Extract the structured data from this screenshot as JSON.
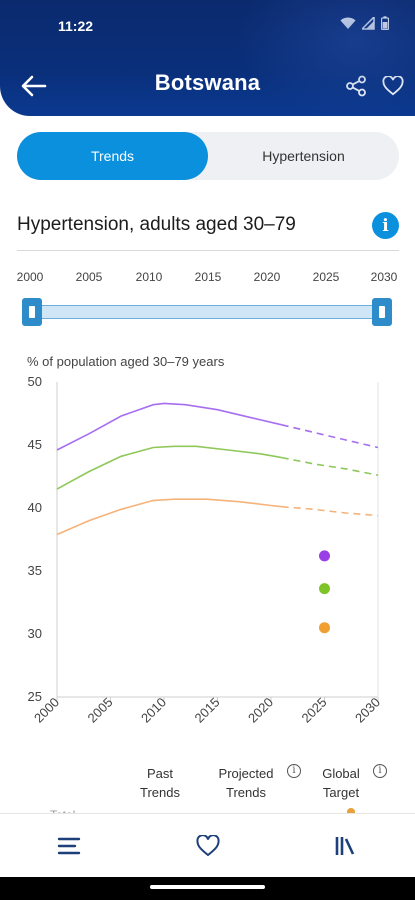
{
  "status_bar": {
    "time": "11:22"
  },
  "header": {
    "title": "Botswana"
  },
  "tabs": [
    {
      "label": "Trends",
      "active": true
    },
    {
      "label": "Hypertension",
      "active": false
    }
  ],
  "section": {
    "title": "Hypertension, adults aged 30–79",
    "info_icon": "i"
  },
  "slider": {
    "years": [
      "2000",
      "2005",
      "2010",
      "2015",
      "2020",
      "2025",
      "2030"
    ],
    "range_start": 2000,
    "range_end": 2030
  },
  "chart_data": {
    "type": "line",
    "ylabel": "% of population aged 30–79 years",
    "ylim": [
      25,
      50
    ],
    "yticks": [
      "25",
      "30",
      "35",
      "40",
      "45",
      "50"
    ],
    "xlim": [
      2000,
      2030
    ],
    "xticks": [
      "2000",
      "2005",
      "2010",
      "2015",
      "2020",
      "2025",
      "2030"
    ],
    "series": [
      {
        "color": "#a76ef0",
        "past": [
          [
            2000,
            44.6
          ],
          [
            2003,
            45.9
          ],
          [
            2006,
            47.3
          ],
          [
            2009,
            48.2
          ],
          [
            2010,
            48.3
          ],
          [
            2012,
            48.2
          ],
          [
            2015,
            47.8
          ],
          [
            2018,
            47.2
          ],
          [
            2021,
            46.6
          ]
        ],
        "projected": [
          [
            2021,
            46.6
          ],
          [
            2024,
            46.0
          ],
          [
            2027,
            45.4
          ],
          [
            2030,
            44.8
          ]
        ],
        "target": {
          "x": 2025,
          "y": 36.2,
          "color": "#9a3ee6"
        }
      },
      {
        "color": "#8ec85a",
        "past": [
          [
            2000,
            41.5
          ],
          [
            2003,
            42.9
          ],
          [
            2006,
            44.1
          ],
          [
            2009,
            44.8
          ],
          [
            2011,
            44.9
          ],
          [
            2013,
            44.9
          ],
          [
            2016,
            44.6
          ],
          [
            2019,
            44.3
          ],
          [
            2021,
            44.0
          ]
        ],
        "projected": [
          [
            2021,
            44.0
          ],
          [
            2024,
            43.5
          ],
          [
            2027,
            43.1
          ],
          [
            2030,
            42.6
          ]
        ],
        "target": {
          "x": 2025,
          "y": 33.6,
          "color": "#7cc427"
        }
      },
      {
        "color": "#f5b37a",
        "past": [
          [
            2000,
            37.9
          ],
          [
            2003,
            39.0
          ],
          [
            2006,
            39.9
          ],
          [
            2009,
            40.6
          ],
          [
            2011,
            40.7
          ],
          [
            2014,
            40.7
          ],
          [
            2017,
            40.5
          ],
          [
            2020,
            40.2
          ],
          [
            2021,
            40.1
          ]
        ],
        "projected": [
          [
            2021,
            40.1
          ],
          [
            2024,
            39.9
          ],
          [
            2027,
            39.6
          ],
          [
            2030,
            39.4
          ]
        ],
        "target": {
          "x": 2025,
          "y": 30.5,
          "color": "#f0a030"
        }
      }
    ]
  },
  "legend": {
    "past": "Past\nTrends",
    "projected": "Projected\nTrends",
    "target": "Global\nTarget",
    "info_icon": "i"
  },
  "cut_off_row": {
    "label": "Total"
  },
  "bottom_nav": [
    {
      "icon": "menu-icon"
    },
    {
      "icon": "heart-icon"
    },
    {
      "icon": "library-icon"
    }
  ],
  "colors": {
    "header": "#0b2a6e",
    "accent": "#0a90dd"
  }
}
